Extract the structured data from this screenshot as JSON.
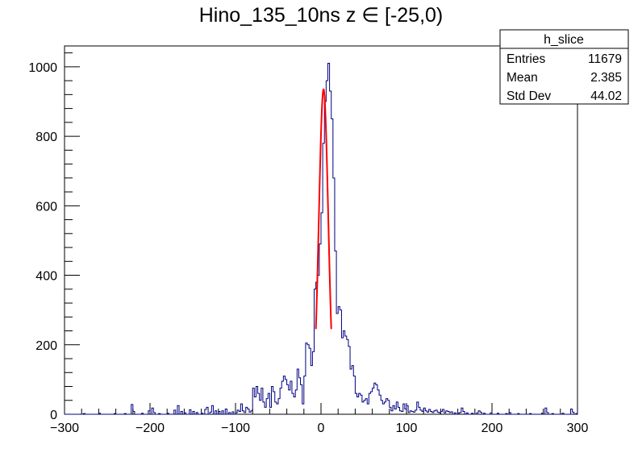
{
  "chart_data": {
    "type": "histogram",
    "title": "Hino_135_10ns z  ∈ [-25,0)",
    "xlabel": "",
    "ylabel": "",
    "xlim": [
      -300,
      300
    ],
    "ylim": [
      0,
      1060
    ],
    "x_ticks": [
      -300,
      -200,
      -100,
      0,
      100,
      200,
      300
    ],
    "x_tick_labels": [
      "−300",
      "−200",
      "−100",
      "0",
      "100",
      "200",
      "300"
    ],
    "y_ticks": [
      0,
      200,
      400,
      600,
      800,
      1000
    ],
    "y_tick_labels": [
      "0",
      "200",
      "400",
      "600",
      "800",
      "1000"
    ],
    "grid": false,
    "colors": {
      "histogram": "#000080",
      "fit": "#ff0000",
      "frame": "#000000"
    },
    "histogram": {
      "bin_width": 2,
      "bins": [
        [
          -278,
          2
        ],
        [
          -260,
          3
        ],
        [
          -242,
          2
        ],
        [
          -230,
          2
        ],
        [
          -222,
          28
        ],
        [
          -220,
          8
        ],
        [
          -210,
          3
        ],
        [
          -202,
          10
        ],
        [
          -198,
          18
        ],
        [
          -196,
          5
        ],
        [
          -190,
          2
        ],
        [
          -180,
          3
        ],
        [
          -172,
          12
        ],
        [
          -168,
          25
        ],
        [
          -164,
          8
        ],
        [
          -160,
          4
        ],
        [
          -154,
          13
        ],
        [
          -150,
          8
        ],
        [
          -146,
          5
        ],
        [
          -140,
          3
        ],
        [
          -136,
          14
        ],
        [
          -134,
          20
        ],
        [
          -130,
          6
        ],
        [
          -128,
          25
        ],
        [
          -124,
          10
        ],
        [
          -120,
          8
        ],
        [
          -116,
          10
        ],
        [
          -112,
          15
        ],
        [
          -108,
          5
        ],
        [
          -104,
          7
        ],
        [
          -100,
          4
        ],
        [
          -98,
          12
        ],
        [
          -96,
          8
        ],
        [
          -94,
          30
        ],
        [
          -92,
          10
        ],
        [
          -90,
          5
        ],
        [
          -88,
          20
        ],
        [
          -86,
          15
        ],
        [
          -84,
          6
        ],
        [
          -82,
          10
        ],
        [
          -80,
          75
        ],
        [
          -78,
          50
        ],
        [
          -76,
          80
        ],
        [
          -74,
          60
        ],
        [
          -72,
          40
        ],
        [
          -70,
          75
        ],
        [
          -68,
          35
        ],
        [
          -66,
          20
        ],
        [
          -64,
          45
        ],
        [
          -62,
          60
        ],
        [
          -60,
          20
        ],
        [
          -58,
          80
        ],
        [
          -56,
          65
        ],
        [
          -54,
          35
        ],
        [
          -52,
          30
        ],
        [
          -50,
          45
        ],
        [
          -48,
          75
        ],
        [
          -46,
          95
        ],
        [
          -44,
          110
        ],
        [
          -42,
          100
        ],
        [
          -40,
          85
        ],
        [
          -38,
          70
        ],
        [
          -36,
          95
        ],
        [
          -34,
          60
        ],
        [
          -32,
          50
        ],
        [
          -30,
          70
        ],
        [
          -28,
          130
        ],
        [
          -26,
          105
        ],
        [
          -24,
          85
        ],
        [
          -22,
          30
        ],
        [
          -20,
          110
        ],
        [
          -18,
          205
        ],
        [
          -16,
          200
        ],
        [
          -14,
          190
        ],
        [
          -12,
          140
        ],
        [
          -10,
          180
        ],
        [
          -8,
          360
        ],
        [
          -6,
          380
        ],
        [
          -4,
          400
        ],
        [
          -2,
          490
        ],
        [
          0,
          580
        ],
        [
          2,
          780
        ],
        [
          4,
          900
        ],
        [
          6,
          960
        ],
        [
          8,
          1010
        ],
        [
          10,
          930
        ],
        [
          12,
          850
        ],
        [
          14,
          680
        ],
        [
          16,
          470
        ],
        [
          18,
          290
        ],
        [
          20,
          310
        ],
        [
          22,
          300
        ],
        [
          24,
          220
        ],
        [
          26,
          240
        ],
        [
          28,
          225
        ],
        [
          30,
          215
        ],
        [
          32,
          195
        ],
        [
          34,
          130
        ],
        [
          36,
          140
        ],
        [
          38,
          110
        ],
        [
          40,
          60
        ],
        [
          42,
          50
        ],
        [
          44,
          60
        ],
        [
          46,
          55
        ],
        [
          48,
          35
        ],
        [
          50,
          40
        ],
        [
          52,
          45
        ],
        [
          54,
          30
        ],
        [
          56,
          60
        ],
        [
          58,
          65
        ],
        [
          60,
          75
        ],
        [
          62,
          90
        ],
        [
          64,
          85
        ],
        [
          66,
          70
        ],
        [
          68,
          55
        ],
        [
          70,
          40
        ],
        [
          72,
          30
        ],
        [
          74,
          35
        ],
        [
          76,
          45
        ],
        [
          78,
          40
        ],
        [
          80,
          20
        ],
        [
          82,
          10
        ],
        [
          84,
          25
        ],
        [
          86,
          15
        ],
        [
          88,
          35
        ],
        [
          90,
          20
        ],
        [
          92,
          10
        ],
        [
          94,
          8
        ],
        [
          96,
          30
        ],
        [
          98,
          15
        ],
        [
          100,
          25
        ],
        [
          102,
          5
        ],
        [
          104,
          10
        ],
        [
          106,
          8
        ],
        [
          108,
          6
        ],
        [
          110,
          12
        ],
        [
          112,
          35
        ],
        [
          114,
          20
        ],
        [
          116,
          12
        ],
        [
          118,
          8
        ],
        [
          120,
          18
        ],
        [
          122,
          10
        ],
        [
          124,
          6
        ],
        [
          126,
          14
        ],
        [
          128,
          8
        ],
        [
          130,
          5
        ],
        [
          132,
          10
        ],
        [
          134,
          12
        ],
        [
          136,
          6
        ],
        [
          138,
          4
        ],
        [
          140,
          8
        ],
        [
          142,
          14
        ],
        [
          144,
          4
        ],
        [
          146,
          10
        ],
        [
          148,
          8
        ],
        [
          150,
          5
        ],
        [
          152,
          7
        ],
        [
          156,
          4
        ],
        [
          160,
          3
        ],
        [
          162,
          5
        ],
        [
          164,
          18
        ],
        [
          166,
          8
        ],
        [
          170,
          4
        ],
        [
          176,
          3
        ],
        [
          182,
          4
        ],
        [
          184,
          10
        ],
        [
          186,
          6
        ],
        [
          190,
          3
        ],
        [
          198,
          4
        ],
        [
          206,
          3
        ],
        [
          216,
          2
        ],
        [
          220,
          5
        ],
        [
          230,
          2
        ],
        [
          244,
          2
        ],
        [
          258,
          3
        ],
        [
          262,
          18
        ],
        [
          264,
          5
        ],
        [
          270,
          2
        ],
        [
          282,
          3
        ],
        [
          292,
          15
        ],
        [
          294,
          6
        ],
        [
          298,
          2
        ]
      ]
    },
    "fit": {
      "type": "gaussian",
      "x_range": [
        -6,
        12
      ],
      "amplitude": 935,
      "mean": 3,
      "sigma": 5.5
    },
    "stats_box": {
      "title": "h_slice",
      "rows": [
        {
          "label": "Entries",
          "value": "11679"
        },
        {
          "label": "Mean",
          "value": "2.385"
        },
        {
          "label": "Std Dev",
          "value": "44.02"
        }
      ]
    }
  }
}
